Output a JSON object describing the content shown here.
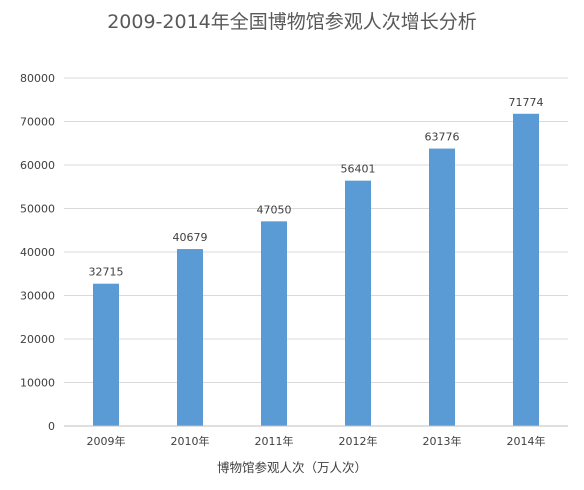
{
  "chart_data": {
    "type": "bar",
    "title": "2009-2014年全国博物馆参观人次增长分析",
    "xlabel": "博物馆参观人次（万人次）",
    "ylabel": "",
    "categories": [
      "2009年",
      "2010年",
      "2011年",
      "2012年",
      "2013年",
      "2014年"
    ],
    "values": [
      32715,
      40679,
      47050,
      56401,
      63776,
      71774
    ],
    "data_labels": [
      "32715",
      "40679",
      "47050",
      "56401",
      "63776",
      "71774"
    ],
    "ylim": [
      0,
      80000
    ],
    "yticks": [
      "0",
      "10000",
      "20000",
      "30000",
      "40000",
      "50000",
      "60000",
      "70000",
      "80000"
    ],
    "grid": true,
    "legend": "none",
    "bar_color": "#5b9bd5"
  }
}
